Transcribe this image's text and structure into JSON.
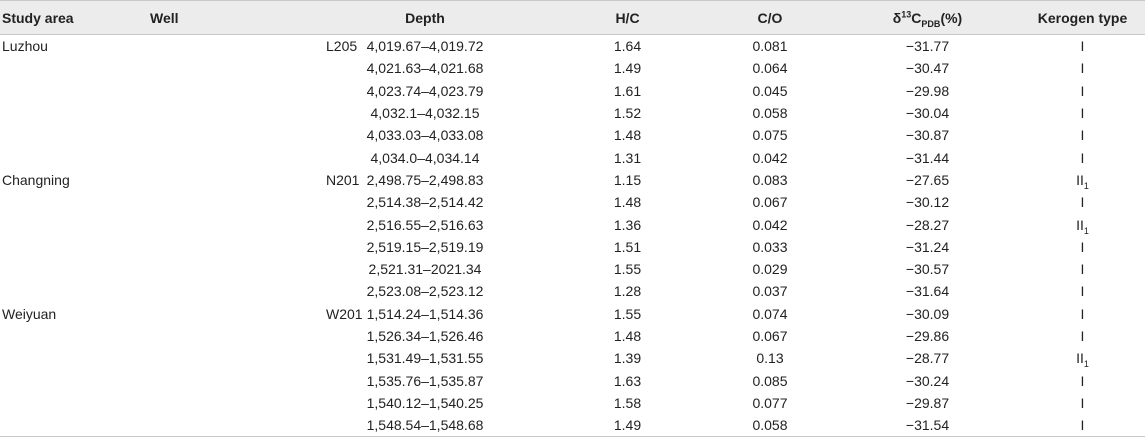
{
  "headers": {
    "study_area": "Study area",
    "well": "Well",
    "depth": "Depth",
    "hc": "H/C",
    "co": "C/O",
    "d13_prefix": "δ",
    "d13_sup": "13",
    "d13_main": "C",
    "d13_sub": "PDB",
    "d13_suffix": "(%)",
    "kerogen": "Kerogen type"
  },
  "rows": [
    {
      "area": "Luzhou",
      "well": "L205",
      "depth": "4,019.67–4,019.72",
      "hc": "1.64",
      "co": "0.081",
      "d13": "−31.77",
      "ker": "I",
      "ker_sub": ""
    },
    {
      "area": "",
      "well": "",
      "depth": "4,021.63–4,021.68",
      "hc": "1.49",
      "co": "0.064",
      "d13": "−30.47",
      "ker": "I",
      "ker_sub": ""
    },
    {
      "area": "",
      "well": "",
      "depth": "4,023.74–4,023.79",
      "hc": "1.61",
      "co": "0.045",
      "d13": "−29.98",
      "ker": "I",
      "ker_sub": ""
    },
    {
      "area": "",
      "well": "",
      "depth": "4,032.1–4,032.15",
      "hc": "1.52",
      "co": "0.058",
      "d13": "−30.04",
      "ker": "I",
      "ker_sub": ""
    },
    {
      "area": "",
      "well": "",
      "depth": "4,033.03–4,033.08",
      "hc": "1.48",
      "co": "0.075",
      "d13": "−30.87",
      "ker": "I",
      "ker_sub": ""
    },
    {
      "area": "",
      "well": "",
      "depth": "4,034.0–4,034.14",
      "hc": "1.31",
      "co": "0.042",
      "d13": "−31.44",
      "ker": "I",
      "ker_sub": ""
    },
    {
      "area": "Changning",
      "well": "N201",
      "depth": "2,498.75–2,498.83",
      "hc": "1.15",
      "co": "0.083",
      "d13": "−27.65",
      "ker": "II",
      "ker_sub": "1"
    },
    {
      "area": "",
      "well": "",
      "depth": "2,514.38–2,514.42",
      "hc": "1.48",
      "co": "0.067",
      "d13": "−30.12",
      "ker": "I",
      "ker_sub": ""
    },
    {
      "area": "",
      "well": "",
      "depth": "2,516.55–2,516.63",
      "hc": "1.36",
      "co": "0.042",
      "d13": "−28.27",
      "ker": "II",
      "ker_sub": "1"
    },
    {
      "area": "",
      "well": "",
      "depth": "2,519.15–2,519.19",
      "hc": "1.51",
      "co": "0.033",
      "d13": "−31.24",
      "ker": "I",
      "ker_sub": ""
    },
    {
      "area": "",
      "well": "",
      "depth": "2,521.31–2021.34",
      "hc": "1.55",
      "co": "0.029",
      "d13": "−30.57",
      "ker": "I",
      "ker_sub": ""
    },
    {
      "area": "",
      "well": "",
      "depth": "2,523.08–2,523.12",
      "hc": "1.28",
      "co": "0.037",
      "d13": "−31.64",
      "ker": "I",
      "ker_sub": ""
    },
    {
      "area": "Weiyuan",
      "well": "W201",
      "depth": "1,514.24–1,514.36",
      "hc": "1.55",
      "co": "0.074",
      "d13": "−30.09",
      "ker": "I",
      "ker_sub": ""
    },
    {
      "area": "",
      "well": "",
      "depth": "1,526.34–1,526.46",
      "hc": "1.48",
      "co": "0.067",
      "d13": "−29.86",
      "ker": "I",
      "ker_sub": ""
    },
    {
      "area": "",
      "well": "",
      "depth": "1,531.49–1,531.55",
      "hc": "1.39",
      "co": "0.13",
      "d13": "−28.77",
      "ker": "II",
      "ker_sub": "1"
    },
    {
      "area": "",
      "well": "",
      "depth": "1,535.76–1,535.87",
      "hc": "1.63",
      "co": "0.085",
      "d13": "−30.24",
      "ker": "I",
      "ker_sub": ""
    },
    {
      "area": "",
      "well": "",
      "depth": "1,540.12–1,540.25",
      "hc": "1.58",
      "co": "0.077",
      "d13": "−29.87",
      "ker": "I",
      "ker_sub": ""
    },
    {
      "area": "",
      "well": "",
      "depth": "1,548.54–1,548.68",
      "hc": "1.49",
      "co": "0.058",
      "d13": "−31.54",
      "ker": "I",
      "ker_sub": ""
    }
  ]
}
